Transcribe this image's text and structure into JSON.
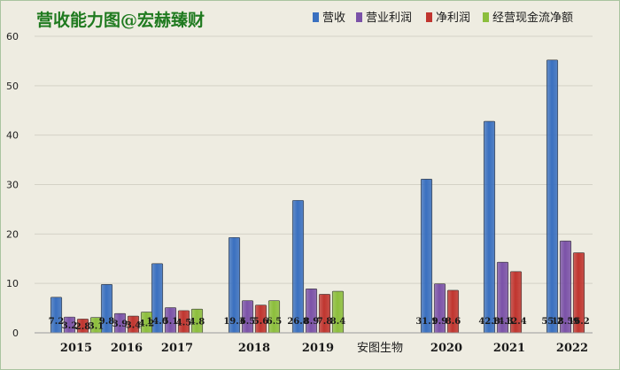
{
  "chart_data": {
    "type": "bar",
    "title": "营收能力图@宏赫臻财",
    "annotation": "安图生物",
    "categories": [
      "2015",
      "2016",
      "2017",
      "2018",
      "2019",
      "2020",
      "2021",
      "2022"
    ],
    "ylim": [
      0,
      60
    ],
    "yticks": [
      0,
      10,
      20,
      30,
      40,
      50,
      60
    ],
    "grid": true,
    "legend_position": "top-right",
    "series": [
      {
        "name": "营收",
        "color": "#3a70c0",
        "values": [
          7.2,
          9.8,
          14.0,
          19.3,
          26.8,
          31.1,
          42.8,
          55.2
        ],
        "labels": [
          "7.2",
          "9.8",
          "14.0",
          "19.3",
          "26.8",
          "31.1",
          "42.8",
          "55.2"
        ]
      },
      {
        "name": "营业利润",
        "color": "#7b52a8",
        "values": [
          3.2,
          3.9,
          5.1,
          6.5,
          8.9,
          9.9,
          14.3,
          18.6
        ],
        "labels": [
          "3.2",
          "3.9",
          "5.1",
          "6.5",
          "8.9",
          "9.9",
          "14.3",
          "18.59"
        ]
      },
      {
        "name": "净利润",
        "color": "#c0352f",
        "values": [
          2.8,
          3.4,
          4.5,
          5.6,
          7.8,
          8.6,
          12.4,
          16.2
        ],
        "labels": [
          "2.8",
          "3.4",
          "4.5",
          "5.6",
          "7.8",
          "8.6",
          "12.4",
          "16.2"
        ]
      },
      {
        "name": "经营现金流净额",
        "color": "#8cbe3c",
        "values": [
          3.1,
          4.2,
          4.8,
          6.5,
          8.4,
          null,
          null,
          null
        ],
        "labels": [
          "3.1",
          "4.2",
          "4.8",
          "6.5",
          "8.4",
          "",
          "",
          ""
        ]
      }
    ]
  }
}
